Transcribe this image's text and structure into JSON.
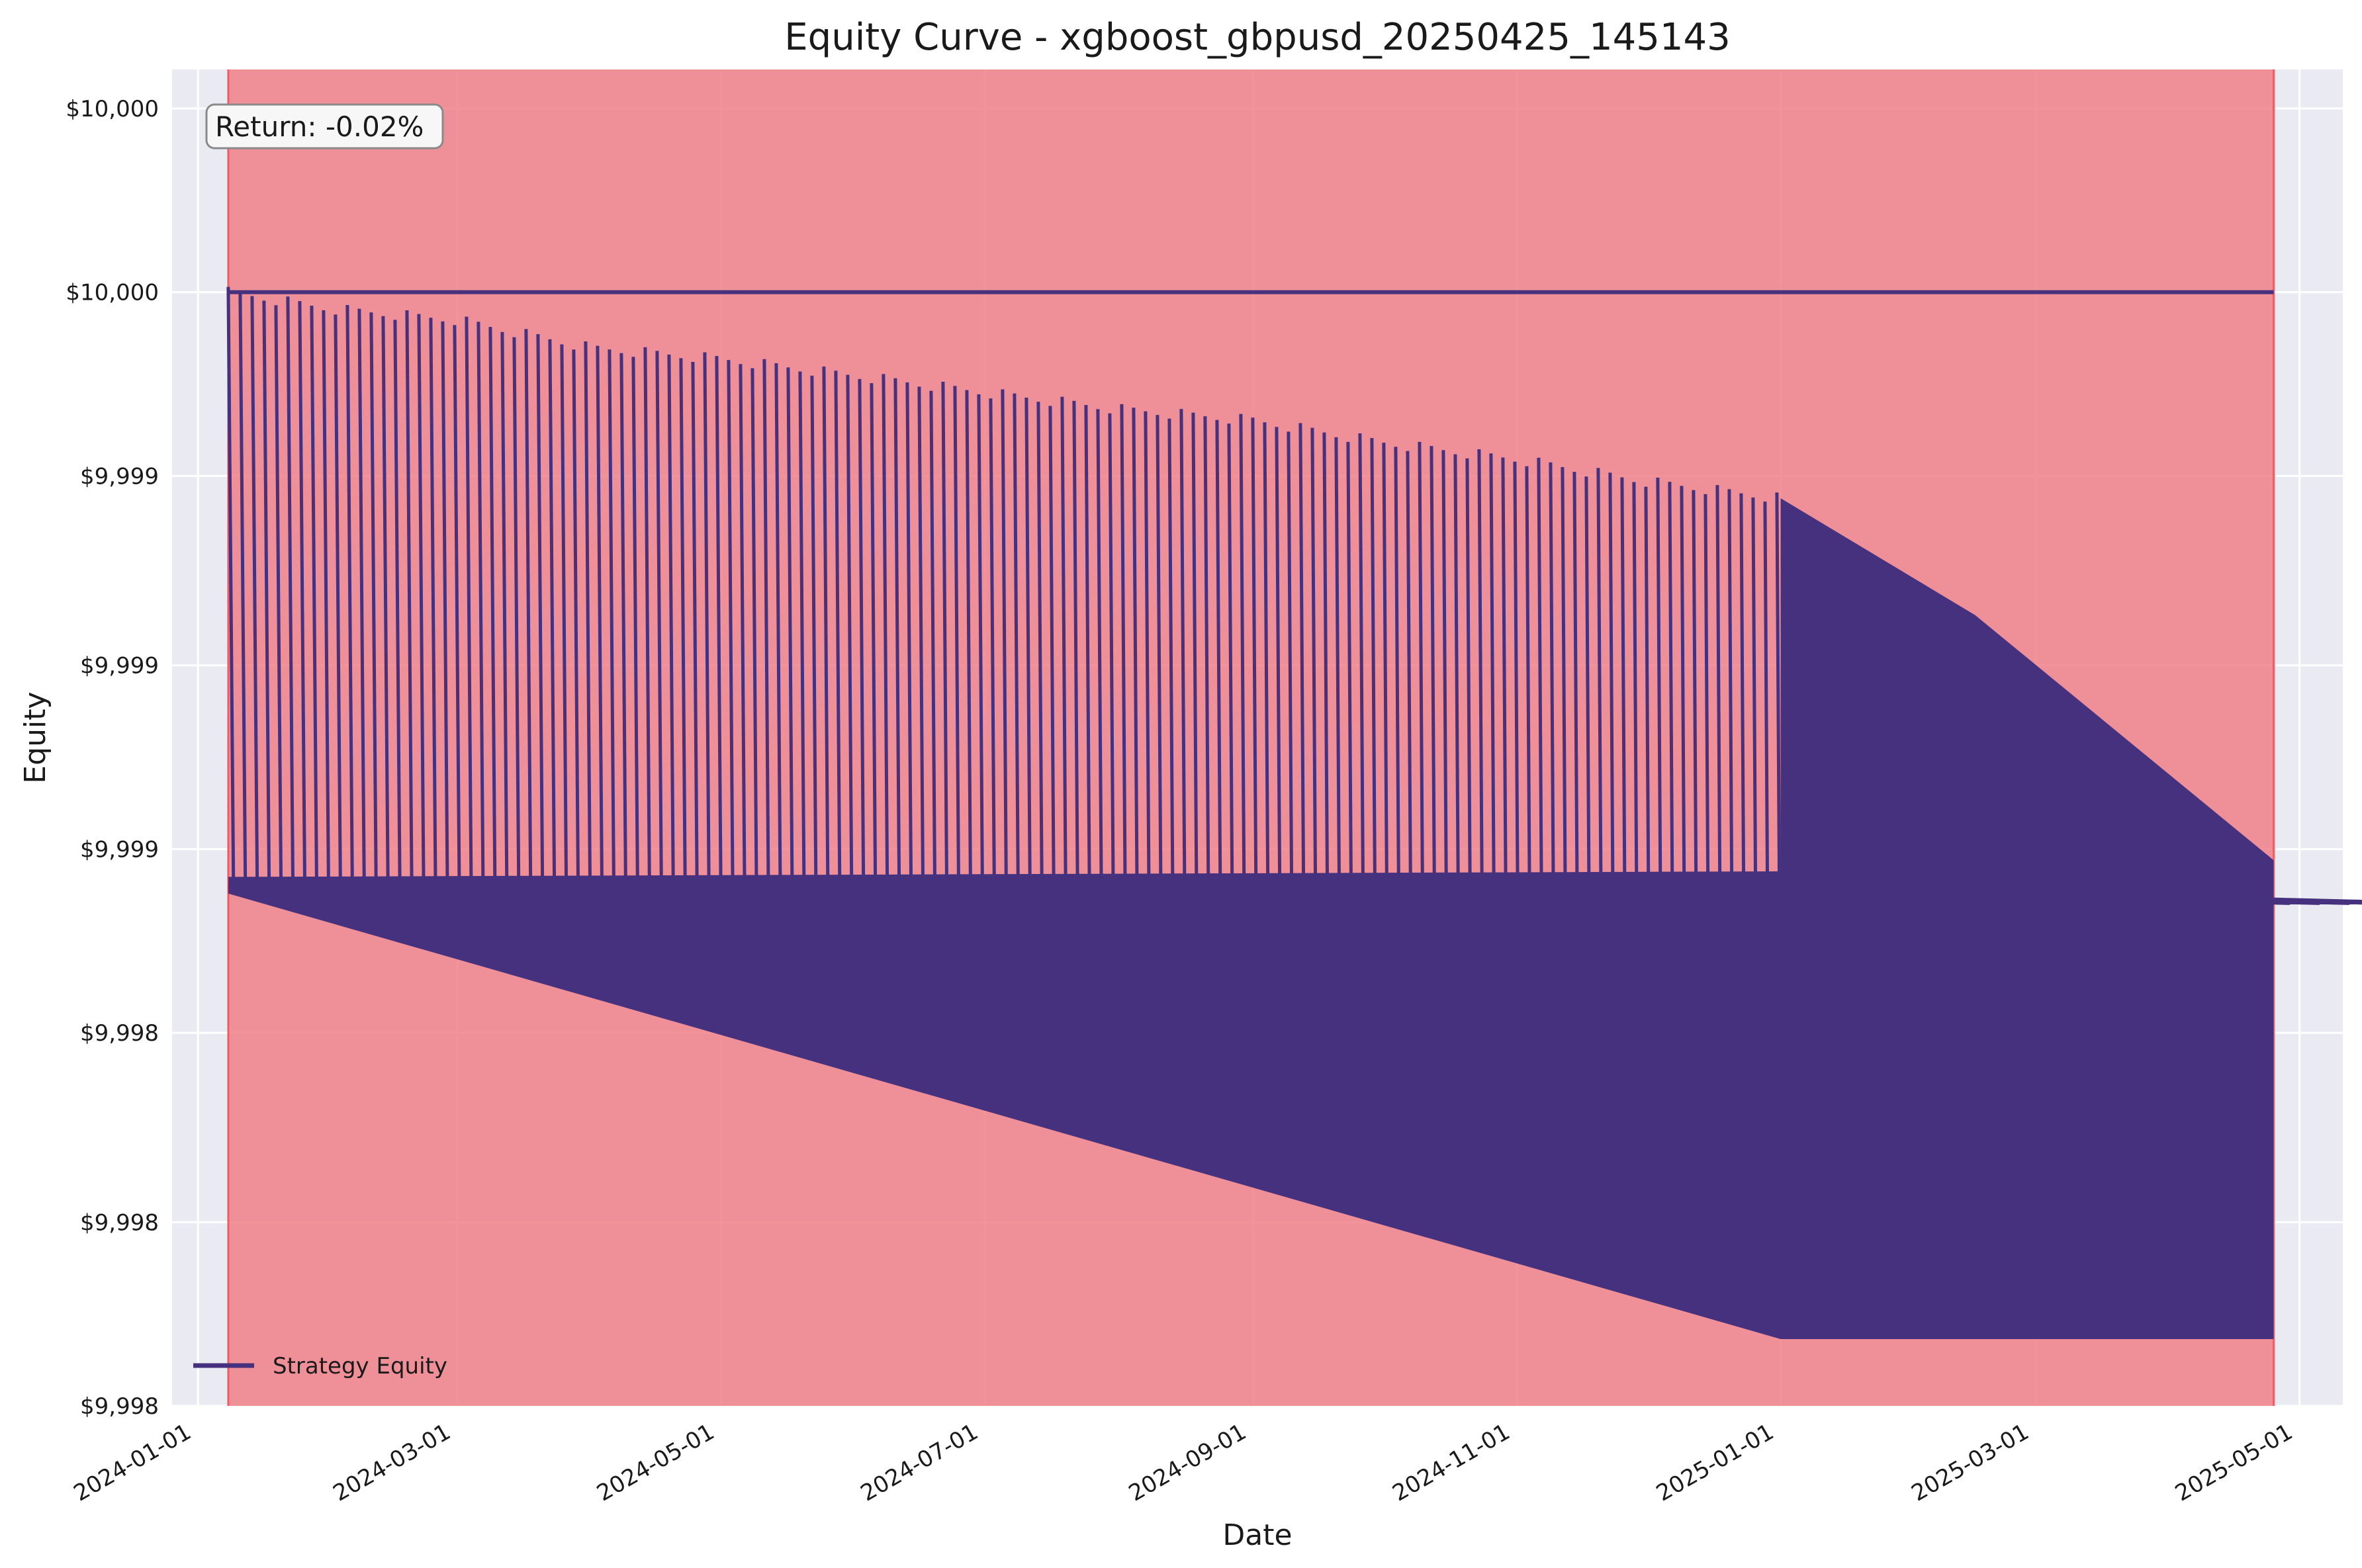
{
  "chart_data": {
    "type": "line",
    "title": "Equity Curve - xgboost_gbpusd_20250425_145143",
    "xlabel": "Date",
    "ylabel": "Equity",
    "x_range": [
      "2023-12-26",
      "2025-05-11"
    ],
    "ylim": [
      9998.0,
      10000.4
    ],
    "x_ticks": [
      "2024-01-01",
      "2024-03-01",
      "2024-05-01",
      "2024-07-01",
      "2024-09-01",
      "2024-11-01",
      "2025-01-01",
      "2025-03-01",
      "2025-05-01"
    ],
    "y_ticks": [
      {
        "value": 9998.0,
        "label": "$9,998"
      },
      {
        "value": 9998.33,
        "label": "$9,998"
      },
      {
        "value": 9998.67,
        "label": "$9,998"
      },
      {
        "value": 9999.0,
        "label": "$9,999"
      },
      {
        "value": 9999.33,
        "label": "$9,999"
      },
      {
        "value": 9999.67,
        "label": "$9,999"
      },
      {
        "value": 10000.0,
        "label": "$10,000"
      },
      {
        "value": 10000.33,
        "label": "$10,000"
      },
      {
        "value": 10000.67,
        "label": "$10,000"
      }
    ],
    "grid": true,
    "legend": {
      "position": "lower-left"
    },
    "series": [
      {
        "name": "Strategy Equity",
        "color": "#46317e",
        "start_date": "2024-01-08",
        "end_date": "2025-04-25",
        "start_value": 10000.0,
        "end_value": 9998.0,
        "points": [
          {
            "x": "2024-01-08",
            "y": 10000.0
          },
          {
            "x": "2024-02-01",
            "y": 9999.97
          },
          {
            "x": "2024-03-01",
            "y": 9999.95
          },
          {
            "x": "2024-04-01",
            "y": 9999.9
          },
          {
            "x": "2024-05-01",
            "y": 9999.88
          },
          {
            "x": "2024-06-01",
            "y": 9999.85
          },
          {
            "x": "2024-07-01",
            "y": 9999.82
          },
          {
            "x": "2024-08-01",
            "y": 9999.79
          },
          {
            "x": "2024-09-01",
            "y": 9999.77
          },
          {
            "x": "2024-10-01",
            "y": 9999.73
          },
          {
            "x": "2024-11-01",
            "y": 9999.7
          },
          {
            "x": "2024-12-01",
            "y": 9999.66
          },
          {
            "x": "2025-01-01",
            "y": 9999.63
          },
          {
            "x": "2025-02-15",
            "y": 9999.0
          },
          {
            "x": "2025-04-25",
            "y": 9998.0
          }
        ]
      }
    ],
    "drawdown_region": {
      "start": "2024-01-08",
      "end": "2025-04-25",
      "color": "#f08088"
    },
    "annotation": "Return: -0.02%"
  }
}
